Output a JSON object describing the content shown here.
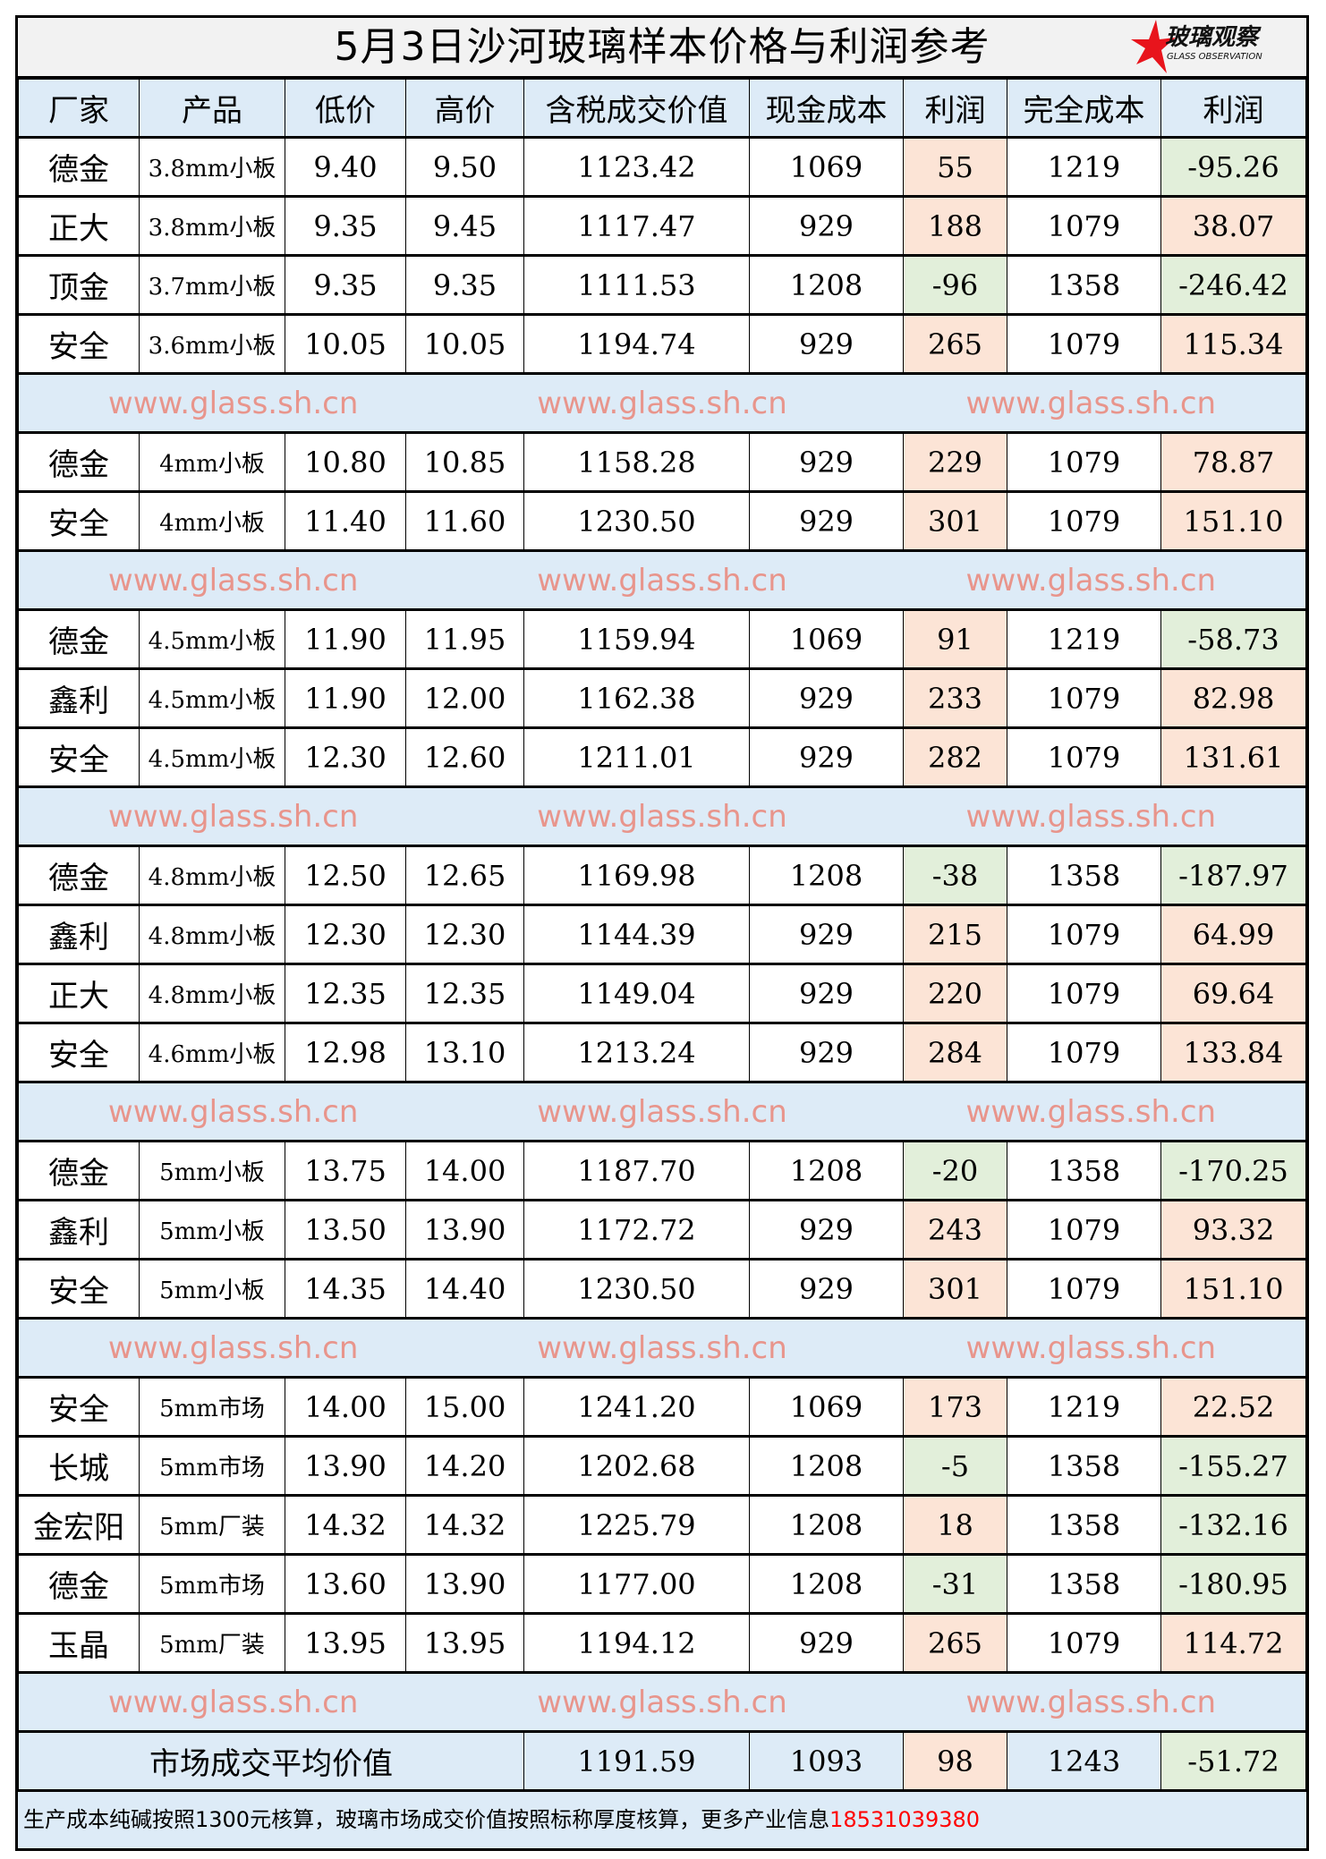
{
  "title": "5月3日沙河玻璃样本价格与利润参考",
  "logo": {
    "cn": "玻璃观察",
    "en": "GLASS OBSERVATION"
  },
  "watermark": "www.glass.sh.cn",
  "colors": {
    "positive": "#fce4d6",
    "negative": "#e2efda",
    "band": "#ddebf7",
    "title_bg": "#f2f2f2",
    "phone": "#ff0000"
  },
  "headers": [
    "厂家",
    "产品",
    "低价",
    "高价",
    "含税成交价值",
    "现金成本",
    "利润",
    "完全成本",
    "利润"
  ],
  "rows": [
    [
      "德金",
      "3.8mm小板",
      "9.40",
      "9.50",
      "1123.42",
      "1069",
      "55",
      "1219",
      "-95.26"
    ],
    [
      "正大",
      "3.8mm小板",
      "9.35",
      "9.45",
      "1117.47",
      "929",
      "188",
      "1079",
      "38.07"
    ],
    [
      "顶金",
      "3.7mm小板",
      "9.35",
      "9.35",
      "1111.53",
      "1208",
      "-96",
      "1358",
      "-246.42"
    ],
    [
      "安全",
      "3.6mm小板",
      "10.05",
      "10.05",
      "1194.74",
      "929",
      "265",
      "1079",
      "115.34"
    ],
    null,
    [
      "德金",
      "4mm小板",
      "10.80",
      "10.85",
      "1158.28",
      "929",
      "229",
      "1079",
      "78.87"
    ],
    [
      "安全",
      "4mm小板",
      "11.40",
      "11.60",
      "1230.50",
      "929",
      "301",
      "1079",
      "151.10"
    ],
    null,
    [
      "德金",
      "4.5mm小板",
      "11.90",
      "11.95",
      "1159.94",
      "1069",
      "91",
      "1219",
      "-58.73"
    ],
    [
      "鑫利",
      "4.5mm小板",
      "11.90",
      "12.00",
      "1162.38",
      "929",
      "233",
      "1079",
      "82.98"
    ],
    [
      "安全",
      "4.5mm小板",
      "12.30",
      "12.60",
      "1211.01",
      "929",
      "282",
      "1079",
      "131.61"
    ],
    null,
    [
      "德金",
      "4.8mm小板",
      "12.50",
      "12.65",
      "1169.98",
      "1208",
      "-38",
      "1358",
      "-187.97"
    ],
    [
      "鑫利",
      "4.8mm小板",
      "12.30",
      "12.30",
      "1144.39",
      "929",
      "215",
      "1079",
      "64.99"
    ],
    [
      "正大",
      "4.8mm小板",
      "12.35",
      "12.35",
      "1149.04",
      "929",
      "220",
      "1079",
      "69.64"
    ],
    [
      "安全",
      "4.6mm小板",
      "12.98",
      "13.10",
      "1213.24",
      "929",
      "284",
      "1079",
      "133.84"
    ],
    null,
    [
      "德金",
      "5mm小板",
      "13.75",
      "14.00",
      "1187.70",
      "1208",
      "-20",
      "1358",
      "-170.25"
    ],
    [
      "鑫利",
      "5mm小板",
      "13.50",
      "13.90",
      "1172.72",
      "929",
      "243",
      "1079",
      "93.32"
    ],
    [
      "安全",
      "5mm小板",
      "14.35",
      "14.40",
      "1230.50",
      "929",
      "301",
      "1079",
      "151.10"
    ],
    null,
    [
      "安全",
      "5mm市场",
      "14.00",
      "15.00",
      "1241.20",
      "1069",
      "173",
      "1219",
      "22.52"
    ],
    [
      "长城",
      "5mm市场",
      "13.90",
      "14.20",
      "1202.68",
      "1208",
      "-5",
      "1358",
      "-155.27"
    ],
    [
      "金宏阳",
      "5mm厂装",
      "14.32",
      "14.32",
      "1225.79",
      "1208",
      "18",
      "1358",
      "-132.16"
    ],
    [
      "德金",
      "5mm市场",
      "13.60",
      "13.90",
      "1177.00",
      "1208",
      "-31",
      "1358",
      "-180.95"
    ],
    [
      "玉晶",
      "5mm厂装",
      "13.95",
      "13.95",
      "1194.12",
      "929",
      "265",
      "1079",
      "114.72"
    ],
    null
  ],
  "average": {
    "label": "市场成交平均价值",
    "value": "1191.59",
    "cash_cost": "1093",
    "profit": "98",
    "full_cost": "1243",
    "full_profit": "-51.72"
  },
  "note": {
    "text": "生产成本纯碱按照1300元核算，玻璃市场成交价值按照标称厚度核算，更多产业信息",
    "phone": "18531039380"
  }
}
